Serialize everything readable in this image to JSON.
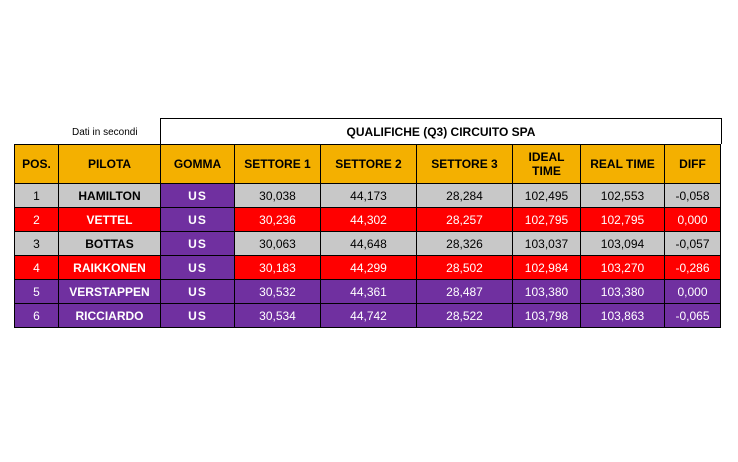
{
  "note": "Dati in secondi",
  "title": "QUALIFICHE (Q3) CIRCUITO SPA",
  "headers": {
    "pos": "POS.",
    "pilota": "PILOTA",
    "gomma": "GOMMA",
    "s1": "SETTORE 1",
    "s2": "SETTORE 2",
    "s3": "SETTORE 3",
    "ideal": "IDEAL TIME",
    "real": "REAL TIME",
    "diff": "DIFF"
  },
  "rows": [
    {
      "pos": "1",
      "pilota": "HAMILTON",
      "gomma": "US",
      "s1": "30,038",
      "s2": "44,173",
      "s3": "28,284",
      "ideal": "102,495",
      "real": "102,553",
      "diff": "-0,058",
      "color": "#c8c8c8"
    },
    {
      "pos": "2",
      "pilota": "VETTEL",
      "gomma": "US",
      "s1": "30,236",
      "s2": "44,302",
      "s3": "28,257",
      "ideal": "102,795",
      "real": "102,795",
      "diff": "0,000",
      "color": "#ff0000"
    },
    {
      "pos": "3",
      "pilota": "BOTTAS",
      "gomma": "US",
      "s1": "30,063",
      "s2": "44,648",
      "s3": "28,326",
      "ideal": "103,037",
      "real": "103,094",
      "diff": "-0,057",
      "color": "#c8c8c8"
    },
    {
      "pos": "4",
      "pilota": "RAIKKONEN",
      "gomma": "US",
      "s1": "30,183",
      "s2": "44,299",
      "s3": "28,502",
      "ideal": "102,984",
      "real": "103,270",
      "diff": "-0,286",
      "color": "#ff0000"
    },
    {
      "pos": "5",
      "pilota": "VERSTAPPEN",
      "gomma": "US",
      "s1": "30,532",
      "s2": "44,361",
      "s3": "28,487",
      "ideal": "103,380",
      "real": "103,380",
      "diff": "0,000",
      "color": "#7030a0"
    },
    {
      "pos": "6",
      "pilota": "RICCIARDO",
      "gomma": "US",
      "s1": "30,534",
      "s2": "44,742",
      "s3": "28,522",
      "ideal": "103,798",
      "real": "103,863",
      "diff": "-0,065",
      "color": "#7030a0"
    }
  ],
  "colors": {
    "header": "#f4b000",
    "tyre": "#7030a0",
    "mercedes": "#c8c8c8",
    "ferrari": "#ff0000",
    "red_bull": "#7030a0"
  }
}
